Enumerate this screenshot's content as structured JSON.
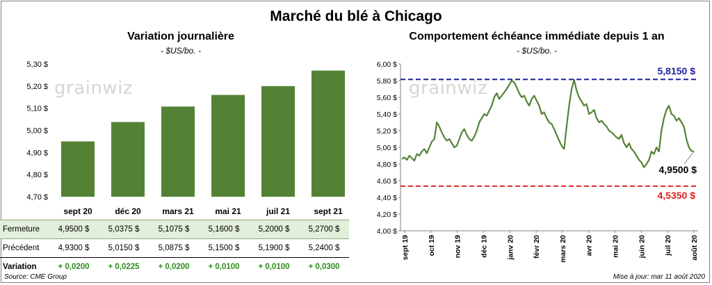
{
  "title": "Marché du blé à Chicago",
  "source": "Source: CME Group",
  "updated": "Mise à jour: mar 11 août 2020",
  "watermark": "grainwiz",
  "colors": {
    "bar": "#548235",
    "line": "#548235",
    "high_line": "#1f1fa0",
    "low_line": "#e02020",
    "variation": "#2e8a1e",
    "table_highlight": "#e2efda"
  },
  "table": {
    "rows": [
      {
        "label": "Fermeture",
        "values": [
          "4,9500  $",
          "5,0375  $",
          "5,1075  $",
          "5,1600  $",
          "5,2000  $",
          "5,2700  $"
        ]
      },
      {
        "label": "Précédent",
        "values": [
          "4,9300  $",
          "5,0150  $",
          "5,0875  $",
          "5,1500  $",
          "5,1900  $",
          "5,2400  $"
        ]
      },
      {
        "label": "Variation",
        "values": [
          "+ 0,0200",
          "+ 0,0225",
          "+ 0,0200",
          "+ 0,0100",
          "+ 0,0100",
          "+ 0,0300"
        ]
      }
    ]
  },
  "chart_data": [
    {
      "type": "bar",
      "title": "Variation  journalière",
      "subtitle": "- $US/bo. -",
      "categories": [
        "sept 20",
        "déc 20",
        "mars 21",
        "mai 21",
        "juil 21",
        "sept 21"
      ],
      "values": [
        4.95,
        5.0375,
        5.1075,
        5.16,
        5.2,
        5.27
      ],
      "ylim": [
        4.7,
        5.3
      ],
      "yticks": [
        "4,70 $",
        "4,80 $",
        "4,90 $",
        "5,00 $",
        "5,10 $",
        "5,20 $",
        "5,30 $"
      ],
      "grid": false
    },
    {
      "type": "line",
      "title": "Comportement  échéance immédiate depuis 1 an",
      "subtitle": "- $US/bo. -",
      "ylim": [
        4.0,
        6.0
      ],
      "yticks": [
        "4,00 $",
        "4,20 $",
        "4,40 $",
        "4,60 $",
        "4,80 $",
        "5,00 $",
        "5,20 $",
        "5,40 $",
        "5,60 $",
        "5,80 $",
        "6,00 $"
      ],
      "xticks": [
        "sept 19",
        "oct 19",
        "nov 19",
        "déc 19",
        "janv 20",
        "févr 20",
        "mars 20",
        "avr 20",
        "mai 20",
        "juin 20",
        "juil 20",
        "août 20"
      ],
      "high": {
        "value": 5.815,
        "label": "5,8150 $"
      },
      "low": {
        "value": 4.535,
        "label": "4,5350 $"
      },
      "last": {
        "value": 4.95,
        "label": "4,9500 $"
      },
      "series": [
        {
          "values": [
            4.86,
            4.88,
            4.85,
            4.9,
            4.87,
            4.84,
            4.92,
            4.9,
            4.95,
            4.98,
            4.93,
            5.0,
            5.07,
            5.1,
            5.3,
            5.25,
            5.18,
            5.12,
            5.08,
            5.1,
            5.05,
            5.0,
            5.02,
            5.1,
            5.18,
            5.22,
            5.15,
            5.1,
            5.08,
            5.13,
            5.2,
            5.3,
            5.35,
            5.4,
            5.38,
            5.44,
            5.5,
            5.6,
            5.65,
            5.58,
            5.62,
            5.66,
            5.7,
            5.75,
            5.8,
            5.78,
            5.72,
            5.65,
            5.6,
            5.62,
            5.55,
            5.5,
            5.58,
            5.62,
            5.56,
            5.5,
            5.4,
            5.42,
            5.35,
            5.3,
            5.28,
            5.22,
            5.15,
            5.08,
            5.02,
            4.98,
            5.25,
            5.5,
            5.7,
            5.81,
            5.68,
            5.6,
            5.55,
            5.5,
            5.52,
            5.4,
            5.42,
            5.45,
            5.35,
            5.3,
            5.32,
            5.28,
            5.25,
            5.2,
            5.18,
            5.15,
            5.12,
            5.1,
            5.15,
            5.05,
            5.0,
            5.05,
            4.98,
            4.95,
            4.9,
            4.85,
            4.82,
            4.76,
            4.8,
            4.85,
            4.95,
            4.92,
            5.0,
            4.95,
            5.2,
            5.35,
            5.45,
            5.5,
            5.4,
            5.38,
            5.32,
            5.35,
            5.3,
            5.25,
            5.1,
            5.0,
            4.96,
            4.95
          ]
        }
      ]
    }
  ]
}
